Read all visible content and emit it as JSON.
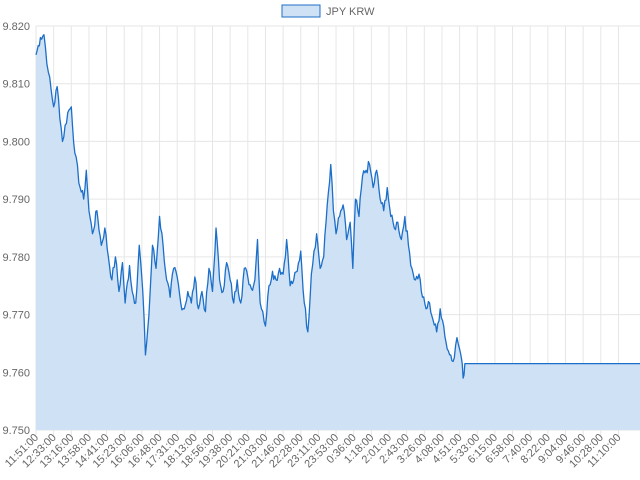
{
  "chart_data": {
    "type": "area",
    "legend": {
      "label": "JPY KRW",
      "position": "top-center"
    },
    "colors": {
      "line": "#1c6fc9",
      "fill": "#cfe1f4",
      "grid": "#e6e6e6",
      "axis_text": "#666666"
    },
    "grid": true,
    "ylim": [
      9.75,
      9.82
    ],
    "y_ticks": [
      "9.820",
      "9.810",
      "9.800",
      "9.790",
      "9.780",
      "9.770",
      "9.760",
      "9.750"
    ],
    "x_ticks": [
      "11:51:00",
      "12:33:00",
      "13:16:00",
      "13:58:00",
      "14:41:00",
      "15:23:00",
      "16:06:00",
      "16:48:00",
      "17:31:00",
      "18:13:00",
      "18:56:00",
      "19:38:00",
      "20:21:00",
      "21:03:00",
      "21:46:00",
      "22:28:00",
      "23:11:00",
      "23:53:00",
      "0:36:00",
      "1:18:00",
      "2:01:00",
      "2:43:00",
      "3:26:00",
      "4:08:00",
      "4:51:00",
      "5:33:00",
      "6:15:00",
      "6:58:00",
      "7:40:00",
      "8:22:00",
      "9:04:00",
      "9:46:00",
      "10:28:00",
      "11:10:00"
    ],
    "series": [
      {
        "name": "JPY KRW",
        "points": [
          [
            0,
            9.815
          ],
          [
            0.25,
            9.818
          ],
          [
            0.45,
            9.8185
          ],
          [
            0.7,
            9.812
          ],
          [
            1.0,
            9.806
          ],
          [
            1.2,
            9.8095
          ],
          [
            1.5,
            9.8
          ],
          [
            1.8,
            9.805
          ],
          [
            2.0,
            9.806
          ],
          [
            2.2,
            9.798
          ],
          [
            2.5,
            9.792
          ],
          [
            2.7,
            9.79
          ],
          [
            2.85,
            9.795
          ],
          [
            3.0,
            9.788
          ],
          [
            3.2,
            9.784
          ],
          [
            3.45,
            9.788
          ],
          [
            3.7,
            9.782
          ],
          [
            3.9,
            9.785
          ],
          [
            4.1,
            9.78
          ],
          [
            4.3,
            9.776
          ],
          [
            4.5,
            9.78
          ],
          [
            4.7,
            9.774
          ],
          [
            4.9,
            9.779
          ],
          [
            5.05,
            9.772
          ],
          [
            5.3,
            9.7785
          ],
          [
            5.45,
            9.774
          ],
          [
            5.65,
            9.772
          ],
          [
            5.85,
            9.782
          ],
          [
            6.05,
            9.774
          ],
          [
            6.2,
            9.763
          ],
          [
            6.4,
            9.77
          ],
          [
            6.6,
            9.782
          ],
          [
            6.8,
            9.778
          ],
          [
            7.0,
            9.787
          ],
          [
            7.2,
            9.782
          ],
          [
            7.4,
            9.776
          ],
          [
            7.6,
            9.773
          ],
          [
            7.8,
            9.778
          ],
          [
            8.0,
            9.7765
          ],
          [
            8.2,
            9.772
          ],
          [
            8.4,
            9.771
          ],
          [
            8.6,
            9.774
          ],
          [
            8.8,
            9.772
          ],
          [
            9.0,
            9.7765
          ],
          [
            9.2,
            9.771
          ],
          [
            9.4,
            9.774
          ],
          [
            9.6,
            9.7705
          ],
          [
            9.8,
            9.778
          ],
          [
            10.0,
            9.774
          ],
          [
            10.2,
            9.785
          ],
          [
            10.4,
            9.776
          ],
          [
            10.6,
            9.774
          ],
          [
            10.8,
            9.779
          ],
          [
            11.0,
            9.776
          ],
          [
            11.2,
            9.772
          ],
          [
            11.4,
            9.776
          ],
          [
            11.6,
            9.772
          ],
          [
            11.8,
            9.778
          ],
          [
            12.0,
            9.7765
          ],
          [
            12.2,
            9.7745
          ],
          [
            12.4,
            9.776
          ],
          [
            12.55,
            9.783
          ],
          [
            12.7,
            9.772
          ],
          [
            12.85,
            9.7705
          ],
          [
            13.0,
            9.768
          ],
          [
            13.2,
            9.775
          ],
          [
            13.4,
            9.7775
          ],
          [
            13.6,
            9.776
          ],
          [
            13.8,
            9.778
          ],
          [
            14.0,
            9.777
          ],
          [
            14.2,
            9.783
          ],
          [
            14.4,
            9.775
          ],
          [
            14.6,
            9.776
          ],
          [
            14.8,
            9.7775
          ],
          [
            15.0,
            9.781
          ],
          [
            15.2,
            9.772
          ],
          [
            15.4,
            9.767
          ],
          [
            15.6,
            9.777
          ],
          [
            15.75,
            9.781
          ],
          [
            15.9,
            9.784
          ],
          [
            16.1,
            9.778
          ],
          [
            16.3,
            9.78
          ],
          [
            16.5,
            9.789
          ],
          [
            16.7,
            9.796
          ],
          [
            16.85,
            9.788
          ],
          [
            17.0,
            9.784
          ],
          [
            17.2,
            9.787
          ],
          [
            17.4,
            9.789
          ],
          [
            17.6,
            9.783
          ],
          [
            17.8,
            9.786
          ],
          [
            17.95,
            9.778
          ],
          [
            18.1,
            9.79
          ],
          [
            18.3,
            9.787
          ],
          [
            18.5,
            9.794
          ],
          [
            18.7,
            9.795
          ],
          [
            18.9,
            9.796
          ],
          [
            19.1,
            9.792
          ],
          [
            19.3,
            9.795
          ],
          [
            19.5,
            9.79
          ],
          [
            19.7,
            9.788
          ],
          [
            19.9,
            9.792
          ],
          [
            20.1,
            9.787
          ],
          [
            20.3,
            9.785
          ],
          [
            20.5,
            9.786
          ],
          [
            20.7,
            9.783
          ],
          [
            20.9,
            9.787
          ],
          [
            21.1,
            9.782
          ],
          [
            21.3,
            9.778
          ],
          [
            21.5,
            9.776
          ],
          [
            21.7,
            9.777
          ],
          [
            21.9,
            9.773
          ],
          [
            22.1,
            9.771
          ],
          [
            22.3,
            9.772
          ],
          [
            22.5,
            9.769
          ],
          [
            22.7,
            9.767
          ],
          [
            22.9,
            9.771
          ],
          [
            23.1,
            9.768
          ],
          [
            23.3,
            9.764
          ],
          [
            23.5,
            9.763
          ],
          [
            23.7,
            9.7625
          ],
          [
            23.85,
            9.766
          ],
          [
            24.0,
            9.764
          ],
          [
            24.1,
            9.7625
          ],
          [
            24.2,
            9.759
          ],
          [
            24.3,
            9.7615
          ],
          [
            33.0,
            9.7615
          ]
        ]
      }
    ]
  }
}
